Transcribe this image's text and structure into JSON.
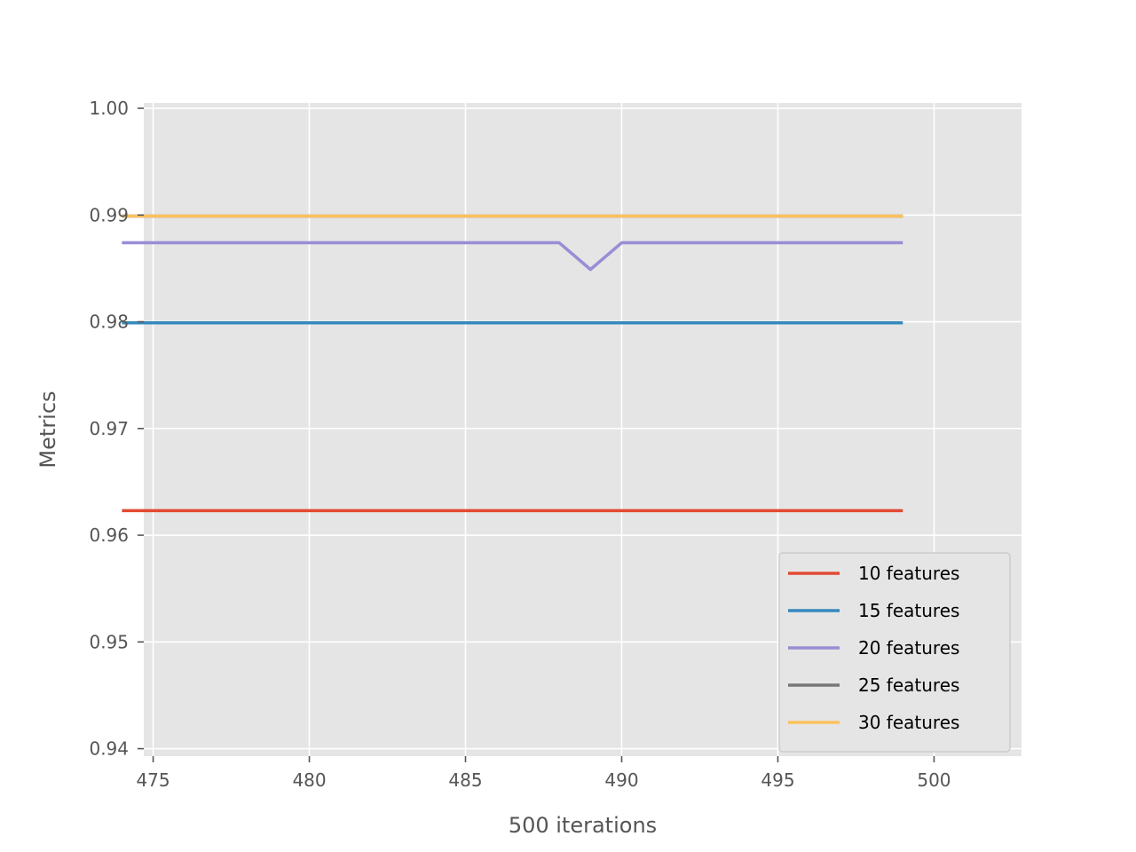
{
  "chart_data": {
    "type": "line",
    "xlabel": "500 iterations",
    "ylabel": "Metrics",
    "xlim": [
      474.7,
      502.8
    ],
    "ylim": [
      0.9393,
      1.0005
    ],
    "xticks": [
      475,
      480,
      485,
      490,
      495,
      500
    ],
    "yticks": [
      0.94,
      0.95,
      0.96,
      0.97,
      0.98,
      0.99,
      1.0
    ],
    "ytick_labels": [
      "0.94",
      "0.95",
      "0.96",
      "0.97",
      "0.98",
      "0.99",
      "1.00"
    ],
    "grid": true,
    "style": "ggplot",
    "legend_position": "lower right",
    "series": [
      {
        "name": "10 features",
        "color": "#E24A33",
        "x": [
          474,
          499
        ],
        "y": [
          0.9623,
          0.9623
        ]
      },
      {
        "name": "15 features",
        "color": "#348ABD",
        "x": [
          474,
          499
        ],
        "y": [
          0.9799,
          0.9799
        ]
      },
      {
        "name": "20 features",
        "color": "#988ED5",
        "x": [
          474,
          488,
          489,
          490,
          499
        ],
        "y": [
          0.9874,
          0.9874,
          0.9849,
          0.9874,
          0.9874
        ]
      },
      {
        "name": "25 features",
        "color": "#777777",
        "x": [
          474,
          499
        ],
        "y": [
          0.9899,
          0.9899
        ]
      },
      {
        "name": "30 features",
        "color": "#FBC15E",
        "x": [
          474,
          499
        ],
        "y": [
          0.9899,
          0.9899
        ]
      }
    ]
  }
}
